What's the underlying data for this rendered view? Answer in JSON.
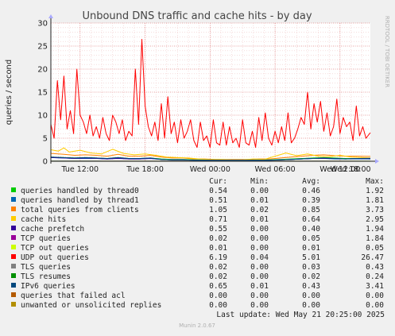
{
  "chart_data": {
    "type": "line",
    "title": "Unbound DNS traffic and cache hits - by day",
    "ylabel": "queries / second",
    "ylim": [
      0,
      30
    ],
    "y_ticks": [
      "0",
      "5",
      "10",
      "15",
      "20",
      "25",
      "30"
    ],
    "x_ticks": [
      "Tue 12:00",
      "Tue 18:00",
      "Wed 00:00",
      "Wed 06:00",
      "Wed 12:00",
      "Wed 18:00"
    ],
    "x_range_hours": [
      9.3,
      38.8
    ],
    "grid": true,
    "side_label": "RRDTOOL / TOBI OETIKER",
    "columns": [
      "Cur:",
      "Min:",
      "Avg:",
      "Max:"
    ],
    "series": [
      {
        "name": "queries handled by thread0",
        "color": "#00cc00",
        "cur": "0.54",
        "min": "0.00",
        "avg": "0.46",
        "max": "1.92",
        "x": [
          9.3,
          10.5,
          11.5,
          12.5,
          13.5,
          14.5,
          15.5,
          16.5,
          17.5,
          18.5,
          19.5,
          20.5,
          21.5,
          22.5,
          23.5,
          24.5,
          25.5,
          26.5,
          27.5,
          28.5,
          29.5,
          30.5,
          31.5,
          32.5,
          33.5,
          34.5,
          35.5,
          36.5,
          37.5,
          38.8
        ],
        "values": [
          0.9,
          0.8,
          0.7,
          0.8,
          0.7,
          0.6,
          0.8,
          0.6,
          0.6,
          0.7,
          0.5,
          0.4,
          0.4,
          0.3,
          0.3,
          0.2,
          0.2,
          0.2,
          0.2,
          0.3,
          0.3,
          0.4,
          0.5,
          0.6,
          0.7,
          0.8,
          0.7,
          0.6,
          0.6,
          0.5
        ]
      },
      {
        "name": "queries handled by thread1",
        "color": "#0066b3",
        "cur": "0.51",
        "min": "0.01",
        "avg": "0.39",
        "max": "1.81",
        "x": [
          9.3,
          10.5,
          11.5,
          12.5,
          13.5,
          14.5,
          15.5,
          16.5,
          17.5,
          18.5,
          19.5,
          20.5,
          21.5,
          22.5,
          23.5,
          24.5,
          25.5,
          26.5,
          27.5,
          28.5,
          29.5,
          30.5,
          31.5,
          32.5,
          33.5,
          34.5,
          35.5,
          36.5,
          37.5,
          38.8
        ],
        "values": [
          0.8,
          0.7,
          0.6,
          0.6,
          0.6,
          0.5,
          0.7,
          0.5,
          0.5,
          0.6,
          0.4,
          0.3,
          0.3,
          0.2,
          0.2,
          0.2,
          0.2,
          0.2,
          0.2,
          0.2,
          0.2,
          0.3,
          0.4,
          0.5,
          0.6,
          0.6,
          0.5,
          0.5,
          0.5,
          0.5
        ]
      },
      {
        "name": "total queries from clients",
        "color": "#ff8000",
        "cur": "1.05",
        "min": "0.02",
        "avg": "0.85",
        "max": "3.73",
        "x": [
          9.3,
          10.5,
          11.5,
          12.5,
          13.5,
          14.5,
          15.5,
          16.5,
          17.5,
          18.5,
          19.5,
          20.5,
          21.5,
          22.5,
          23.5,
          24.5,
          25.5,
          26.5,
          27.5,
          28.5,
          29.5,
          30.5,
          31.5,
          32.5,
          33.5,
          34.5,
          35.5,
          36.5,
          37.5,
          38.8
        ],
        "values": [
          1.7,
          1.5,
          1.3,
          1.4,
          1.3,
          1.1,
          1.5,
          1.1,
          1.1,
          1.3,
          0.9,
          0.7,
          0.7,
          0.5,
          0.5,
          0.4,
          0.4,
          0.4,
          0.4,
          0.5,
          0.5,
          0.7,
          0.9,
          1.1,
          1.3,
          1.4,
          1.2,
          1.1,
          1.1,
          1.05
        ]
      },
      {
        "name": "cache hits",
        "color": "#ffcc00",
        "cur": "0.71",
        "min": "0.01",
        "avg": "0.64",
        "max": "2.95",
        "x": [
          9.3,
          10.0,
          10.5,
          11.0,
          12.0,
          13.0,
          14.0,
          15.0,
          16.0,
          17.0,
          18.0,
          19.0,
          20.0,
          21.0,
          22.0,
          23.0,
          24.0,
          25.0,
          26.0,
          27.0,
          28.0,
          29.0,
          30.0,
          31.0,
          32.0,
          33.0,
          34.0,
          35.0,
          36.0,
          37.0,
          38.0,
          38.8
        ],
        "values": [
          2.5,
          2.2,
          2.9,
          2.0,
          2.4,
          1.8,
          1.6,
          2.6,
          1.7,
          1.4,
          1.6,
          1.3,
          0.9,
          0.8,
          0.7,
          0.5,
          0.4,
          0.4,
          0.3,
          0.3,
          0.5,
          0.4,
          1.1,
          1.8,
          1.2,
          1.6,
          1.1,
          1.0,
          1.3,
          0.9,
          0.8,
          0.7
        ]
      },
      {
        "name": "cache prefetch",
        "color": "#330099",
        "cur": "0.55",
        "min": "0.00",
        "avg": "0.40",
        "max": "1.94",
        "x": [
          9.3,
          10.5,
          11.5,
          12.5,
          13.5,
          14.5,
          15.5,
          16.5,
          17.5,
          18.5,
          19.5,
          20.5,
          21.5,
          22.5,
          23.5,
          24.5,
          25.5,
          26.5,
          27.5,
          28.5,
          29.5,
          30.5,
          31.5,
          32.5,
          33.5,
          34.5,
          35.5,
          36.5,
          37.5,
          38.8
        ],
        "values": [
          0.8,
          0.7,
          0.6,
          0.7,
          0.6,
          0.5,
          0.6,
          0.5,
          0.5,
          0.6,
          0.4,
          0.3,
          0.3,
          0.2,
          0.2,
          0.2,
          0.2,
          0.2,
          0.2,
          0.2,
          0.2,
          0.3,
          0.4,
          0.5,
          0.6,
          0.6,
          0.6,
          0.5,
          0.6,
          0.55
        ]
      },
      {
        "name": "TCP queries",
        "color": "#990099",
        "cur": "0.02",
        "min": "0.00",
        "avg": "0.05",
        "max": "1.84",
        "x": [
          9.3,
          12.0,
          15.0,
          18.0,
          21.0,
          24.0,
          27.0,
          30.0,
          33.0,
          36.0,
          38.8
        ],
        "values": [
          0.05,
          0.06,
          0.05,
          0.05,
          0.04,
          0.04,
          0.04,
          0.05,
          0.05,
          0.04,
          0.02
        ]
      },
      {
        "name": "TCP out queries",
        "color": "#ccff00",
        "cur": "0.01",
        "min": "0.00",
        "avg": "0.01",
        "max": "0.05",
        "x": [
          9.3,
          38.8
        ],
        "values": [
          0.01,
          0.01
        ]
      },
      {
        "name": "UDP out queries",
        "color": "#ff0000",
        "cur": "6.19",
        "min": "0.04",
        "avg": "5.01",
        "max": "26.47",
        "x": [
          9.3,
          9.6,
          9.9,
          10.2,
          10.5,
          10.8,
          11.1,
          11.4,
          11.7,
          12.0,
          12.3,
          12.6,
          12.9,
          13.2,
          13.5,
          13.8,
          14.1,
          14.4,
          14.7,
          15.0,
          15.3,
          15.6,
          15.9,
          16.2,
          16.5,
          16.8,
          17.1,
          17.4,
          17.7,
          18.0,
          18.3,
          18.6,
          18.9,
          19.2,
          19.5,
          19.8,
          20.1,
          20.4,
          20.7,
          21.0,
          21.3,
          21.6,
          21.9,
          22.2,
          22.5,
          22.8,
          23.1,
          23.4,
          23.7,
          24.0,
          24.3,
          24.6,
          24.9,
          25.2,
          25.5,
          25.8,
          26.1,
          26.4,
          26.7,
          27.0,
          27.3,
          27.6,
          27.9,
          28.2,
          28.5,
          28.8,
          29.1,
          29.4,
          29.7,
          30.0,
          30.3,
          30.6,
          30.9,
          31.2,
          31.5,
          31.8,
          32.1,
          32.4,
          32.7,
          33.0,
          33.3,
          33.6,
          33.9,
          34.2,
          34.5,
          34.8,
          35.1,
          35.4,
          35.7,
          36.0,
          36.3,
          36.6,
          36.9,
          37.2,
          37.5,
          37.8,
          38.1,
          38.4,
          38.8
        ],
        "values": [
          8.0,
          5.0,
          17.5,
          9.0,
          18.5,
          7.0,
          11.0,
          6.0,
          20.0,
          10.0,
          8.5,
          6.0,
          10.0,
          5.5,
          7.5,
          5.0,
          9.5,
          6.0,
          4.5,
          10.0,
          8.5,
          6.0,
          9.0,
          4.5,
          6.5,
          5.5,
          20.0,
          8.0,
          26.47,
          12.0,
          7.5,
          5.5,
          8.5,
          4.5,
          12.5,
          5.0,
          14.0,
          6.0,
          8.5,
          4.0,
          9.0,
          5.0,
          6.5,
          9.0,
          4.5,
          3.0,
          8.5,
          4.5,
          5.5,
          3.0,
          9.0,
          4.0,
          3.5,
          8.5,
          3.5,
          7.5,
          4.0,
          5.0,
          3.0,
          9.0,
          4.0,
          3.5,
          6.5,
          3.0,
          9.5,
          4.5,
          10.5,
          5.0,
          3.5,
          6.5,
          4.0,
          7.5,
          4.5,
          10.5,
          4.0,
          5.0,
          7.0,
          9.5,
          8.0,
          15.0,
          7.0,
          12.5,
          8.5,
          13.0,
          6.5,
          10.5,
          5.5,
          7.5,
          13.5,
          6.0,
          9.5,
          7.5,
          8.5,
          4.5,
          12.0,
          5.5,
          7.5,
          5.0,
          6.19
        ]
      },
      {
        "name": "TLS queries",
        "color": "#808080",
        "cur": "0.02",
        "min": "0.00",
        "avg": "0.03",
        "max": "0.43",
        "x": [
          9.3,
          38.8
        ],
        "values": [
          0.03,
          0.02
        ]
      },
      {
        "name": "TLS resumes",
        "color": "#008f00",
        "cur": "0.02",
        "min": "0.00",
        "avg": "0.02",
        "max": "0.24",
        "x": [
          9.3,
          38.8
        ],
        "values": [
          0.02,
          0.02
        ]
      },
      {
        "name": "IPv6 queries",
        "color": "#00487d",
        "cur": "0.65",
        "min": "0.01",
        "avg": "0.43",
        "max": "3.41",
        "x": [
          9.3,
          10.5,
          11.5,
          12.5,
          13.5,
          14.5,
          15.5,
          16.5,
          17.5,
          18.5,
          19.5,
          20.5,
          21.5,
          22.5,
          23.5,
          24.5,
          25.5,
          26.5,
          27.5,
          28.5,
          29.5,
          30.5,
          31.5,
          32.5,
          33.5,
          34.5,
          35.5,
          36.5,
          37.5,
          38.8
        ],
        "values": [
          0.9,
          0.8,
          0.7,
          0.8,
          0.7,
          0.6,
          0.8,
          0.6,
          0.6,
          0.7,
          0.4,
          0.3,
          0.3,
          0.2,
          0.2,
          0.2,
          0.2,
          0.2,
          0.2,
          0.2,
          0.2,
          0.3,
          0.4,
          0.5,
          0.6,
          0.7,
          0.6,
          0.5,
          0.6,
          0.65
        ]
      },
      {
        "name": "queries that failed acl",
        "color": "#b35a00",
        "cur": "0.00",
        "min": "0.00",
        "avg": "0.00",
        "max": "0.00",
        "x": [
          9.3,
          38.8
        ],
        "values": [
          0,
          0
        ]
      },
      {
        "name": "unwanted or unsolicited replies",
        "color": "#b38f00",
        "cur": "0.00",
        "min": "0.00",
        "avg": "0.00",
        "max": "0.00",
        "x": [
          9.3,
          38.8
        ],
        "values": [
          0,
          0
        ]
      }
    ],
    "last_update": "Last update:  Wed May 21 20:25:00 2025",
    "footer": "Munin 2.0.67"
  }
}
